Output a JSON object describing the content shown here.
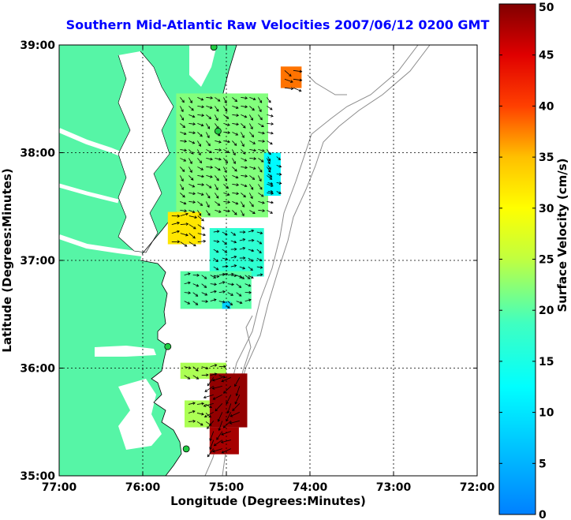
{
  "title": "Southern Mid-Atlantic Raw Velocities 2007/06/12 0200 GMT",
  "xlabel": "Longitude (Degrees:Minutes)",
  "ylabel": "Latitude (Degrees:Minutes)",
  "x_ticks": [
    "77:00",
    "76:00",
    "75:00",
    "74:00",
    "73:00",
    "72:00"
  ],
  "y_ticks": [
    "39:00",
    "38:00",
    "37:00",
    "36:00",
    "35:00"
  ],
  "colorbar": {
    "label": "Surface Velocity (cm/s)",
    "ticks": [
      "0",
      "5",
      "10",
      "15",
      "20",
      "25",
      "30",
      "35",
      "40",
      "45",
      "50"
    ]
  },
  "colors": {
    "land": "#56f5a6",
    "water": "#ffffff",
    "title": "#0000ff",
    "bathymetry": "#8c8c8c",
    "site_marker": "#22cc44"
  },
  "chart_data": {
    "type": "heatmap",
    "title": "Southern Mid-Atlantic Raw Velocities 2007/06/12 0200 GMT",
    "xlabel": "Longitude (Degrees:Minutes)",
    "ylabel": "Latitude (Degrees:Minutes)",
    "xlim": [
      -77,
      -72
    ],
    "ylim": [
      35,
      39
    ],
    "colorbar_range": [
      0,
      50
    ],
    "colorbar_label": "Surface Velocity (cm/s)",
    "grid": true,
    "regions": [
      {
        "lon": [
          -75.6,
          -74.5
        ],
        "lat": [
          37.4,
          38.55
        ],
        "speed": 22
      },
      {
        "lon": [
          -74.35,
          -74.1
        ],
        "lat": [
          38.6,
          38.8
        ],
        "speed": 38
      },
      {
        "lon": [
          -74.55,
          -74.35
        ],
        "lat": [
          37.6,
          38.0
        ],
        "speed": 12
      },
      {
        "lon": [
          -75.7,
          -75.3
        ],
        "lat": [
          37.15,
          37.45
        ],
        "speed": 32
      },
      {
        "lon": [
          -75.2,
          -74.55
        ],
        "lat": [
          36.85,
          37.3
        ],
        "speed": 17
      },
      {
        "lon": [
          -75.55,
          -74.7
        ],
        "lat": [
          36.55,
          36.9
        ],
        "speed": 20
      },
      {
        "lon": [
          -75.05,
          -74.95
        ],
        "lat": [
          36.55,
          36.62
        ],
        "speed": 8
      },
      {
        "lon": [
          -75.55,
          -75.0
        ],
        "lat": [
          35.9,
          36.05
        ],
        "speed": 24
      },
      {
        "lon": [
          -75.2,
          -74.75
        ],
        "lat": [
          35.45,
          35.95
        ],
        "speed": 49
      },
      {
        "lon": [
          -75.5,
          -75.2
        ],
        "lat": [
          35.45,
          35.7
        ],
        "speed": 24
      },
      {
        "lon": [
          -75.2,
          -74.85
        ],
        "lat": [
          35.2,
          35.45
        ],
        "speed": 48
      }
    ],
    "radar_sites": [
      {
        "lon": -75.15,
        "lat": 38.98
      },
      {
        "lon": -75.1,
        "lat": 38.2
      },
      {
        "lon": -75.7,
        "lat": 36.2
      },
      {
        "lon": -75.48,
        "lat": 35.25
      }
    ]
  }
}
